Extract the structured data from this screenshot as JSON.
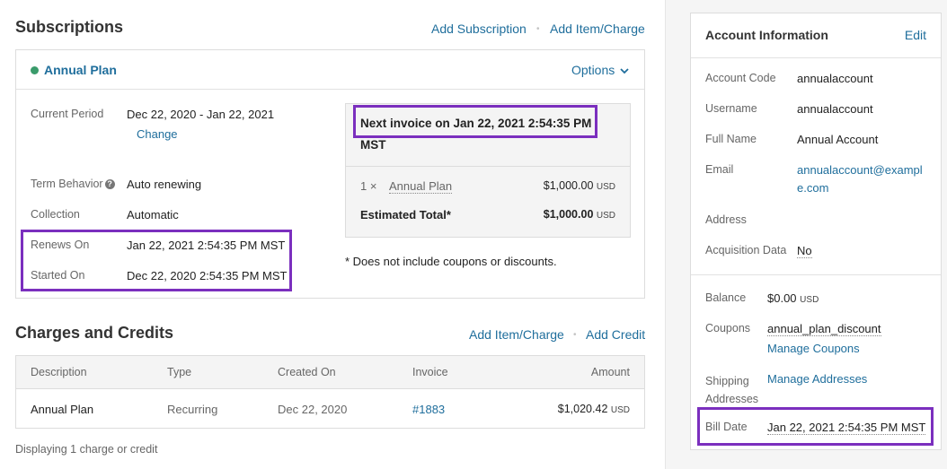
{
  "subscriptions": {
    "title": "Subscriptions",
    "add_subscription": "Add Subscription",
    "add_item_charge": "Add Item/Charge",
    "plan": {
      "name": "Annual Plan",
      "options": "Options",
      "current_period_label": "Current Period",
      "current_period_value": "Dec 22, 2020 - Jan 22, 2021",
      "change": "Change",
      "term_behavior_label": "Term Behavior",
      "term_behavior_value": "Auto renewing",
      "collection_label": "Collection",
      "collection_value": "Automatic",
      "renews_on_label": "Renews On",
      "renews_on_value": "Jan 22, 2021 2:54:35 PM MST",
      "started_on_label": "Started On",
      "started_on_value": "Dec 22, 2020 2:54:35 PM MST"
    },
    "invoice": {
      "next_invoice_line1": "Next invoice on Jan 22, 2021 2:54:35 PM",
      "next_invoice_line2": "MST",
      "qty": "1 ×",
      "item": "Annual Plan",
      "item_amount": "$1,000.00",
      "currency": "USD",
      "estimated_label": "Estimated Total*",
      "estimated_amount": "$1,000.00",
      "footnote": "* Does not include coupons or discounts."
    }
  },
  "charges": {
    "title": "Charges and Credits",
    "add_item_charge": "Add Item/Charge",
    "add_credit": "Add Credit",
    "headers": {
      "description": "Description",
      "type": "Type",
      "created_on": "Created On",
      "invoice": "Invoice",
      "amount": "Amount"
    },
    "rows": [
      {
        "description": "Annual Plan",
        "type": "Recurring",
        "created_on": "Dec 22, 2020",
        "invoice": "#1883",
        "amount": "$1,020.42",
        "currency": "USD"
      }
    ],
    "footer": "Displaying 1 charge or credit"
  },
  "account": {
    "title": "Account Information",
    "edit": "Edit",
    "account_code_label": "Account Code",
    "account_code_value": "annualaccount",
    "username_label": "Username",
    "username_value": "annualaccount",
    "full_name_label": "Full Name",
    "full_name_value": "Annual Account",
    "email_label": "Email",
    "email_line1": "annualaccount@exampl",
    "email_line2": "e.com",
    "address_label": "Address",
    "acquisition_label": "Acquisition Data",
    "acquisition_value": "No",
    "balance_label": "Balance",
    "balance_value": "$0.00",
    "currency": "USD",
    "coupons_label": "Coupons",
    "coupon_value": "annual_plan_discount",
    "manage_coupons": "Manage Coupons",
    "shipping_label_1": "Shipping",
    "shipping_label_2": "Addresses",
    "manage_addresses": "Manage Addresses",
    "bill_date_label": "Bill Date",
    "bill_date_value": "Jan 22, 2021 2:54:35 PM MST"
  },
  "colors": {
    "link": "#1f6e9c",
    "highlight": "#7b2fbe",
    "status": "#3a9b6b"
  }
}
